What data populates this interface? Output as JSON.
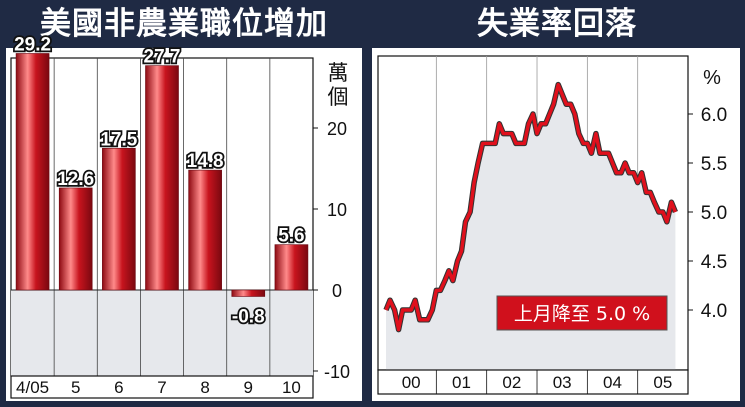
{
  "titles": {
    "left": "美國非農業職位增加",
    "right": "失業率回落"
  },
  "colors": {
    "background": "#1f2a44",
    "bar_red": "#c8141e",
    "bar_highlight": "#ff8a8a",
    "line_red": "#e0101c",
    "area_fill": "#e6e8ec",
    "badge_bg": "#d0101c"
  },
  "annotation": "上月降至 5.0 %",
  "chart_data": [
    {
      "type": "bar",
      "title": "美國非農業職位增加",
      "unit_label": "萬個",
      "categories": [
        "4/05",
        "5",
        "6",
        "7",
        "8",
        "9",
        "10"
      ],
      "values": [
        29.2,
        12.6,
        17.5,
        27.7,
        14.8,
        -0.8,
        5.6
      ],
      "value_labels": [
        "29.2",
        "12.6",
        "17.5",
        "27.7",
        "14.8",
        "-0.8",
        "5.6"
      ],
      "ylim": [
        -10,
        30
      ],
      "yticks": [
        -10,
        0,
        10,
        20
      ],
      "ytick_labels": [
        "-10",
        "0",
        "10",
        "20"
      ],
      "axis_side": "right",
      "grid": false
    },
    {
      "type": "area",
      "title": "失業率回落",
      "unit_label": "%",
      "x_labels": [
        "00",
        "01",
        "02",
        "03",
        "04",
        "05"
      ],
      "x_start": 2000.0,
      "x_end": 2005.92,
      "ylim": [
        3.6,
        6.5
      ],
      "yticks": [
        4.0,
        4.5,
        5.0,
        5.5,
        6.0
      ],
      "ytick_labels": [
        "4.0",
        "4.5",
        "5.0",
        "5.5",
        "6.0"
      ],
      "axis_side": "right",
      "grid": "vertical",
      "points": [
        [
          2000.0,
          4.0
        ],
        [
          2000.08,
          4.1
        ],
        [
          2000.17,
          4.0
        ],
        [
          2000.25,
          3.8
        ],
        [
          2000.33,
          4.0
        ],
        [
          2000.42,
          4.0
        ],
        [
          2000.5,
          4.0
        ],
        [
          2000.58,
          4.1
        ],
        [
          2000.67,
          3.9
        ],
        [
          2000.75,
          3.9
        ],
        [
          2000.83,
          3.9
        ],
        [
          2000.92,
          4.0
        ],
        [
          2001.0,
          4.2
        ],
        [
          2001.08,
          4.2
        ],
        [
          2001.17,
          4.3
        ],
        [
          2001.25,
          4.4
        ],
        [
          2001.33,
          4.3
        ],
        [
          2001.42,
          4.5
        ],
        [
          2001.5,
          4.6
        ],
        [
          2001.58,
          4.9
        ],
        [
          2001.67,
          5.0
        ],
        [
          2001.75,
          5.3
        ],
        [
          2001.83,
          5.5
        ],
        [
          2001.92,
          5.7
        ],
        [
          2002.0,
          5.7
        ],
        [
          2002.08,
          5.7
        ],
        [
          2002.17,
          5.7
        ],
        [
          2002.25,
          5.9
        ],
        [
          2002.33,
          5.8
        ],
        [
          2002.42,
          5.8
        ],
        [
          2002.5,
          5.8
        ],
        [
          2002.58,
          5.7
        ],
        [
          2002.67,
          5.7
        ],
        [
          2002.75,
          5.7
        ],
        [
          2002.83,
          5.9
        ],
        [
          2002.92,
          6.0
        ],
        [
          2003.0,
          5.8
        ],
        [
          2003.08,
          5.9
        ],
        [
          2003.17,
          5.9
        ],
        [
          2003.25,
          6.0
        ],
        [
          2003.33,
          6.1
        ],
        [
          2003.42,
          6.3
        ],
        [
          2003.5,
          6.2
        ],
        [
          2003.58,
          6.1
        ],
        [
          2003.67,
          6.1
        ],
        [
          2003.75,
          6.0
        ],
        [
          2003.83,
          5.8
        ],
        [
          2003.92,
          5.7
        ],
        [
          2004.0,
          5.7
        ],
        [
          2004.08,
          5.6
        ],
        [
          2004.17,
          5.8
        ],
        [
          2004.25,
          5.6
        ],
        [
          2004.33,
          5.6
        ],
        [
          2004.42,
          5.6
        ],
        [
          2004.5,
          5.5
        ],
        [
          2004.58,
          5.4
        ],
        [
          2004.67,
          5.4
        ],
        [
          2004.75,
          5.5
        ],
        [
          2004.83,
          5.4
        ],
        [
          2004.92,
          5.4
        ],
        [
          2005.0,
          5.3
        ],
        [
          2005.08,
          5.4
        ],
        [
          2005.17,
          5.2
        ],
        [
          2005.25,
          5.2
        ],
        [
          2005.33,
          5.1
        ],
        [
          2005.42,
          5.0
        ],
        [
          2005.5,
          5.0
        ],
        [
          2005.58,
          4.9
        ],
        [
          2005.67,
          5.1
        ],
        [
          2005.75,
          5.0
        ]
      ]
    }
  ]
}
